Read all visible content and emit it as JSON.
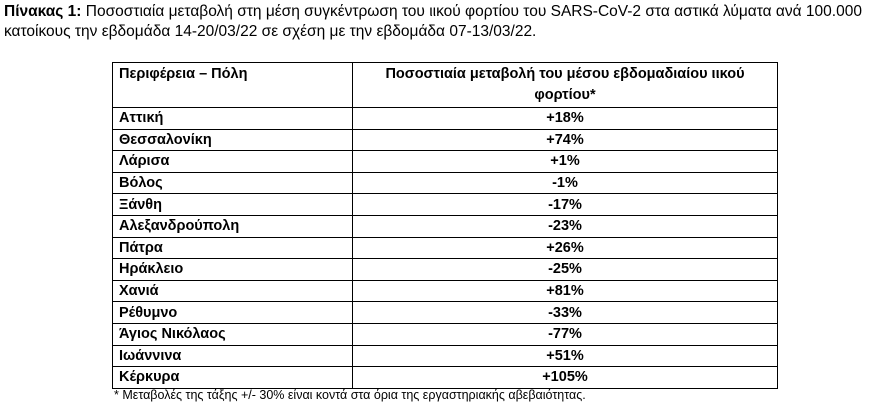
{
  "caption": {
    "label": "Πίνακας 1:",
    "text": "Ποσοστιαία μεταβολή στη μέση συγκέντρωση του ιικού φορτίου του SARS-CoV-2 στα αστικά λύματα ανά 100.000 κατοίκους την εβδομάδα 14-20/03/22 σε σχέση με την εβδομάδα 07-13/03/22."
  },
  "table": {
    "headers": {
      "region": "Περιφέρεια – Πόλη",
      "change": "Ποσοστιαία μεταβολή του μέσου εβδομαδιαίου ιικού φορτίου*"
    },
    "rows": [
      {
        "region": "Αττική",
        "change": "+18%"
      },
      {
        "region": "Θεσσαλονίκη",
        "change": "+74%"
      },
      {
        "region": "Λάρισα",
        "change": "+1%"
      },
      {
        "region": "Βόλος",
        "change": "-1%"
      },
      {
        "region": "Ξάνθη",
        "change": "-17%"
      },
      {
        "region": "Αλεξανδρούπολη",
        "change": "-23%"
      },
      {
        "region": "Πάτρα",
        "change": "+26%"
      },
      {
        "region": "Ηράκλειο",
        "change": "-25%"
      },
      {
        "region": "Χανιά",
        "change": "+81%"
      },
      {
        "region": "Ρέθυμνο",
        "change": "-33%"
      },
      {
        "region": "Άγιος Νικόλαος",
        "change": "-77%"
      },
      {
        "region": "Ιωάννινα",
        "change": "+51%"
      },
      {
        "region": "Κέρκυρα",
        "change": "+105%"
      }
    ]
  },
  "footnote": "* Μεταβολές της τάξης +/- 30% είναι κοντά στα όρια της εργαστηριακής αβεβαιότητας."
}
